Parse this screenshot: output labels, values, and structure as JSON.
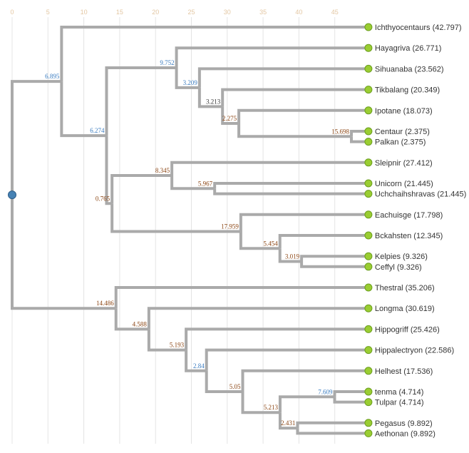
{
  "axis": {
    "ticks": [
      0,
      5,
      10,
      15,
      20,
      25,
      30,
      35,
      40,
      45
    ],
    "max": 49.692
  },
  "colors": {
    "link": "#aaaaaa",
    "leaf_fill": "#9acd32",
    "leaf_stroke": "#6b9e1f",
    "root_fill": "#4682b4",
    "label_blue": "#3a7cc0",
    "label_brown": "#8b4513",
    "grid": "#e4e4e4"
  },
  "tree": {
    "children": [
      {
        "length": "6.895",
        "color": "blue",
        "children": [
          {
            "length": "42.797",
            "name": "Ichthyocentaurs (42.797)"
          },
          {
            "length": "6.274",
            "color": "blue",
            "children": [
              {
                "length": "9.752",
                "color": "blue",
                "children": [
                  {
                    "length": "26.771",
                    "name": "Hayagriva (26.771)"
                  },
                  {
                    "length": "3.209",
                    "color": "blue",
                    "children": [
                      {
                        "length": "23.562",
                        "name": "Sihuanaba (23.562)"
                      },
                      {
                        "length": "3.213",
                        "color": "dark",
                        "children": [
                          {
                            "length": "20.349",
                            "name": "Tikbalang (20.349)"
                          },
                          {
                            "length": "2.275",
                            "color": "brown",
                            "children": [
                              {
                                "length": "18.073",
                                "name": "Ipotane (18.073)"
                              },
                              {
                                "length": "15.698",
                                "color": "brown",
                                "children": [
                                  {
                                    "length": "2.375",
                                    "name": "Centaur (2.375)"
                                  },
                                  {
                                    "length": "2.375",
                                    "name": "Palkan (2.375)"
                                  }
                                ]
                              }
                            ]
                          }
                        ]
                      }
                    ]
                  }
                ]
              },
              {
                "length": "0.765",
                "color": "brown",
                "children": [
                  {
                    "length": "8.345",
                    "color": "brown",
                    "children": [
                      {
                        "length": "27.412",
                        "name": "Sleipnir (27.412)"
                      },
                      {
                        "length": "5.967",
                        "color": "brown",
                        "children": [
                          {
                            "length": "21.445",
                            "name": "Unicorn (21.445)"
                          },
                          {
                            "length": "21.445",
                            "name": "Uchchaihshravas (21.445)"
                          }
                        ]
                      }
                    ]
                  },
                  {
                    "length": "17.959",
                    "color": "brown",
                    "children": [
                      {
                        "length": "17.798",
                        "name": "Eachuisge (17.798)"
                      },
                      {
                        "length": "5.454",
                        "color": "brown",
                        "children": [
                          {
                            "length": "12.345",
                            "name": "Bckahsten (12.345)"
                          },
                          {
                            "length": "3.019",
                            "color": "brown",
                            "children": [
                              {
                                "length": "9.326",
                                "name": "Kelpies (9.326)"
                              },
                              {
                                "length": "9.326",
                                "name": "Ceffyl (9.326)"
                              }
                            ]
                          }
                        ]
                      }
                    ]
                  }
                ]
              }
            ]
          }
        ]
      },
      {
        "length": "14.486",
        "color": "brown",
        "children": [
          {
            "length": "35.206",
            "name": "Thestral (35.206)"
          },
          {
            "length": "4.588",
            "color": "brown",
            "children": [
              {
                "length": "30.619",
                "name": "Longma (30.619)"
              },
              {
                "length": "5.193",
                "color": "brown",
                "children": [
                  {
                    "length": "25.426",
                    "name": "Hippogriff (25.426)"
                  },
                  {
                    "length": "2.84",
                    "color": "blue",
                    "children": [
                      {
                        "length": "22.586",
                        "name": "Hippalectryon (22.586)"
                      },
                      {
                        "length": "5.05",
                        "color": "brown",
                        "children": [
                          {
                            "length": "17.536",
                            "name": "Helhest (17.536)"
                          },
                          {
                            "length": "5.213",
                            "color": "brown",
                            "children": [
                              {
                                "length": "7.609",
                                "color": "blue",
                                "children": [
                                  {
                                    "length": "4.714",
                                    "name": "tenma (4.714)"
                                  },
                                  {
                                    "length": "4.714",
                                    "name": "Tulpar (4.714)"
                                  }
                                ]
                              },
                              {
                                "length": "2.431",
                                "color": "brown",
                                "children": [
                                  {
                                    "length": "9.892",
                                    "name": "Pegasus (9.892)"
                                  },
                                  {
                                    "length": "9.892",
                                    "name": "Aethonan (9.892)"
                                  }
                                ]
                              }
                            ]
                          }
                        ]
                      }
                    ]
                  }
                ]
              }
            ]
          }
        ]
      }
    ]
  }
}
